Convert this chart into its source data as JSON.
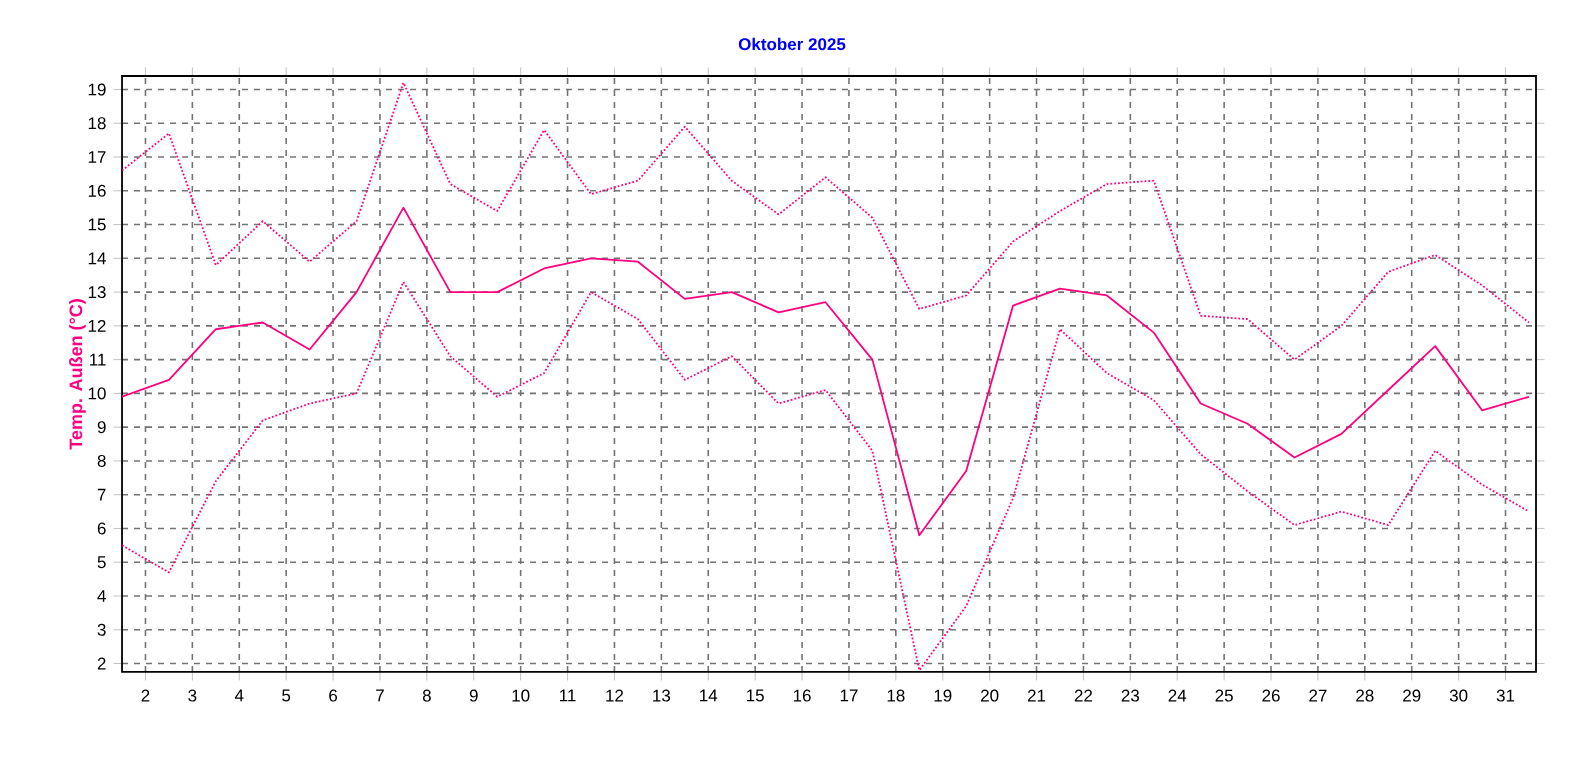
{
  "chart_data": {
    "type": "line",
    "title": "Oktober 2025",
    "ylabel": "Temp. Außen (°C)",
    "x": [
      1.5,
      2.5,
      3.5,
      4.5,
      5.5,
      6.5,
      7.5,
      8.5,
      9.5,
      10.5,
      11.5,
      12.5,
      13.5,
      14.5,
      15.5,
      16.5,
      17.5,
      18.5,
      19.5,
      20.5,
      21.5,
      22.5,
      23.5,
      24.5,
      25.5,
      26.5,
      27.5,
      28.5,
      29.5,
      30.5,
      31.5
    ],
    "series": [
      {
        "color": "#ff0080",
        "line_style": "dotted",
        "values": [
          16.6,
          17.7,
          13.8,
          15.1,
          13.9,
          15.1,
          19.2,
          16.2,
          15.4,
          17.8,
          15.9,
          16.3,
          17.9,
          16.3,
          15.3,
          16.4,
          15.2,
          12.5,
          12.9,
          14.5,
          15.4,
          16.2,
          16.3,
          12.3,
          12.2,
          11.0,
          12.0,
          13.6,
          14.1,
          13.2,
          12.1
        ]
      },
      {
        "color": "#ff0080",
        "line_style": "solid",
        "values": [
          9.9,
          10.4,
          11.9,
          12.1,
          11.3,
          13.0,
          15.5,
          13.0,
          13.0,
          13.7,
          14.0,
          13.9,
          12.8,
          13.0,
          12.4,
          12.7,
          11.0,
          5.8,
          7.7,
          12.6,
          13.1,
          12.9,
          11.8,
          9.7,
          9.1,
          8.1,
          8.8,
          10.1,
          11.4,
          9.5,
          9.9
        ]
      },
      {
        "color": "#ff0080",
        "line_style": "dotted",
        "values": [
          5.5,
          4.7,
          7.4,
          9.2,
          9.7,
          10.0,
          13.3,
          11.1,
          9.9,
          10.6,
          13.0,
          12.2,
          10.4,
          11.1,
          9.7,
          10.1,
          8.3,
          1.8,
          3.7,
          6.9,
          11.9,
          10.6,
          9.8,
          8.2,
          7.1,
          6.1,
          6.5,
          6.1,
          8.3,
          7.3,
          6.5
        ]
      }
    ],
    "xlim": [
      1.5,
      31.65
    ],
    "ylim": [
      1.75,
      19.4
    ],
    "xticks": [
      2,
      3,
      4,
      5,
      6,
      7,
      8,
      9,
      10,
      11,
      12,
      13,
      14,
      15,
      16,
      17,
      18,
      19,
      20,
      21,
      22,
      23,
      24,
      25,
      26,
      27,
      28,
      29,
      30,
      31
    ],
    "yticks": [
      2,
      3,
      4,
      5,
      6,
      7,
      8,
      9,
      10,
      11,
      12,
      13,
      14,
      15,
      16,
      17,
      18,
      19
    ],
    "grid": true,
    "legend": false,
    "marker": "none"
  }
}
